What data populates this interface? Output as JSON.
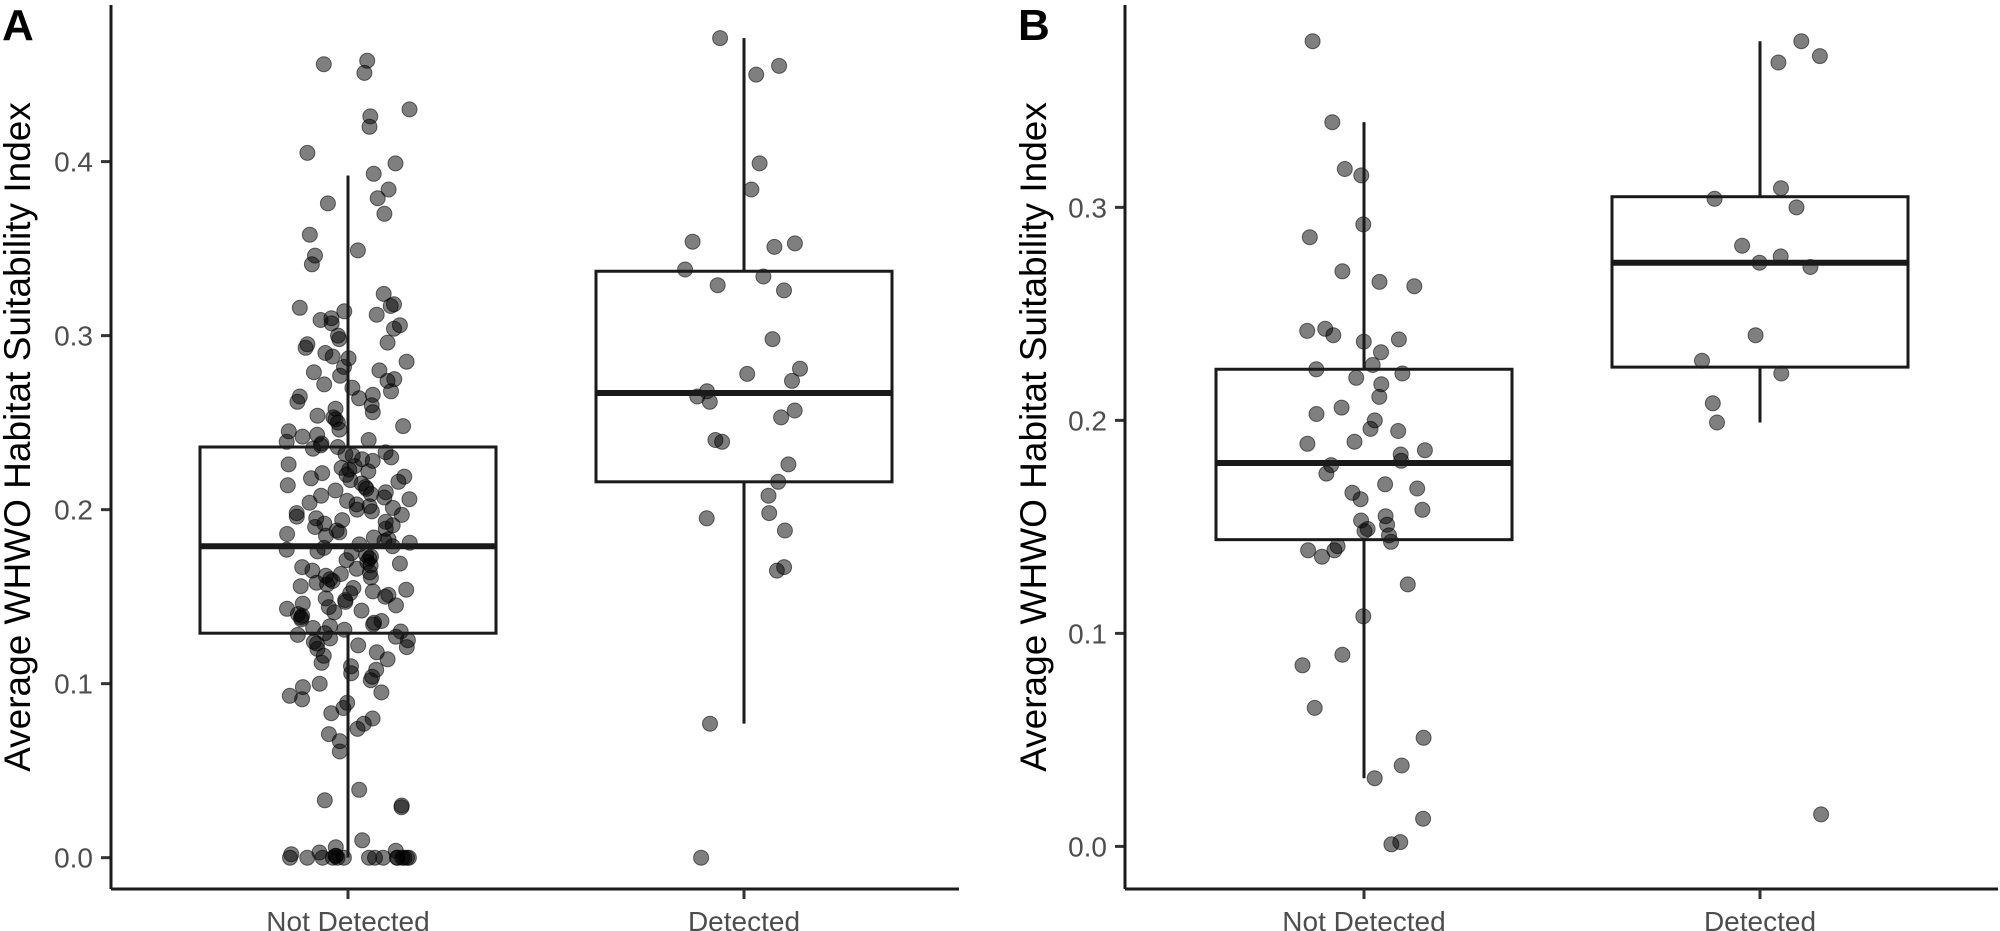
{
  "chart_data": [
    {
      "type": "box",
      "panel_letter": "A",
      "title": "",
      "xlabel": "",
      "ylabel": "Average WHWO Habitat Suitability Index",
      "categories": [
        "Not Detected",
        "Detected"
      ],
      "ylim": [
        -0.018,
        0.49
      ],
      "yticks": [
        0.0,
        0.1,
        0.2,
        0.3,
        0.4
      ],
      "ytick_labels": [
        "0.0",
        "0.1",
        "0.2",
        "0.3",
        "0.4"
      ],
      "grid": false,
      "boxes": [
        {
          "category": "Not Detected",
          "whisker_low": 0.0,
          "q1": 0.129,
          "median": 0.179,
          "q3": 0.236,
          "whisker_high": 0.392
        },
        {
          "category": "Detected",
          "whisker_low": 0.077,
          "q1": 0.216,
          "median": 0.267,
          "q3": 0.337,
          "whisker_high": 0.471
        }
      ],
      "points": [
        {
          "category": "Not Detected",
          "values": [
            0.458,
            0.456,
            0.451,
            0.43,
            0.426,
            0.42,
            0.405,
            0.399,
            0.393,
            0.384,
            0.379,
            0.376,
            0.37,
            0.358,
            0.349,
            0.346,
            0.341,
            0.324,
            0.318,
            0.317,
            0.316,
            0.314,
            0.312,
            0.31,
            0.309,
            0.307,
            0.306,
            0.304,
            0.3,
            0.298,
            0.296,
            0.295,
            0.293,
            0.29,
            0.288,
            0.287,
            0.285,
            0.282,
            0.28,
            0.279,
            0.277,
            0.275,
            0.274,
            0.272,
            0.27,
            0.268,
            0.266,
            0.265,
            0.264,
            0.262,
            0.26,
            0.258,
            0.256,
            0.254,
            0.253,
            0.252,
            0.25,
            0.248,
            0.246,
            0.245,
            0.243,
            0.242,
            0.24,
            0.239,
            0.238,
            0.237,
            0.236,
            0.235,
            0.233,
            0.232,
            0.231,
            0.23,
            0.229,
            0.228,
            0.226,
            0.225,
            0.224,
            0.223,
            0.222,
            0.221,
            0.22,
            0.219,
            0.218,
            0.217,
            0.216,
            0.215,
            0.214,
            0.213,
            0.212,
            0.211,
            0.21,
            0.209,
            0.208,
            0.207,
            0.206,
            0.205,
            0.204,
            0.203,
            0.202,
            0.201,
            0.2,
            0.199,
            0.198,
            0.197,
            0.196,
            0.195,
            0.194,
            0.193,
            0.192,
            0.191,
            0.19,
            0.189,
            0.188,
            0.187,
            0.186,
            0.185,
            0.184,
            0.183,
            0.182,
            0.181,
            0.18,
            0.179,
            0.178,
            0.177,
            0.176,
            0.175,
            0.174,
            0.173,
            0.172,
            0.171,
            0.17,
            0.169,
            0.168,
            0.167,
            0.166,
            0.165,
            0.164,
            0.163,
            0.162,
            0.161,
            0.16,
            0.159,
            0.158,
            0.157,
            0.156,
            0.155,
            0.154,
            0.153,
            0.152,
            0.151,
            0.15,
            0.149,
            0.148,
            0.147,
            0.146,
            0.145,
            0.144,
            0.143,
            0.142,
            0.141,
            0.14,
            0.139,
            0.138,
            0.137,
            0.136,
            0.135,
            0.134,
            0.133,
            0.132,
            0.131,
            0.13,
            0.129,
            0.128,
            0.127,
            0.126,
            0.125,
            0.124,
            0.123,
            0.122,
            0.121,
            0.12,
            0.118,
            0.116,
            0.114,
            0.112,
            0.11,
            0.108,
            0.106,
            0.104,
            0.102,
            0.1,
            0.098,
            0.095,
            0.093,
            0.091,
            0.089,
            0.086,
            0.083,
            0.08,
            0.077,
            0.074,
            0.071,
            0.067,
            0.061,
            0.039,
            0.033,
            0.03,
            0.029,
            0.01,
            0.006,
            0.004,
            0.003,
            0.002,
            0.001,
            0.001,
            0.0,
            0.0,
            0.0,
            0.0,
            0.0,
            0.0,
            0.0,
            0.0,
            0.0,
            0.0,
            0.0,
            0.0,
            0.0,
            0.0,
            0.0
          ]
        },
        {
          "category": "Detected",
          "values": [
            0.471,
            0.455,
            0.45,
            0.399,
            0.384,
            0.354,
            0.353,
            0.351,
            0.338,
            0.334,
            0.329,
            0.326,
            0.298,
            0.281,
            0.278,
            0.274,
            0.268,
            0.265,
            0.262,
            0.257,
            0.253,
            0.24,
            0.239,
            0.226,
            0.216,
            0.208,
            0.198,
            0.195,
            0.188,
            0.167,
            0.165,
            0.077,
            0.0
          ]
        }
      ]
    },
    {
      "type": "box",
      "panel_letter": "B",
      "title": "",
      "xlabel": "",
      "ylabel": "Average WHWO Habitat Suitability Index",
      "categories": [
        "Not Detected",
        "Detected"
      ],
      "ylim": [
        -0.02,
        0.395
      ],
      "yticks": [
        0.0,
        0.1,
        0.2,
        0.3
      ],
      "ytick_labels": [
        "0.0",
        "0.1",
        "0.2",
        "0.3"
      ],
      "grid": false,
      "boxes": [
        {
          "category": "Not Detected",
          "whisker_low": 0.032,
          "q1": 0.144,
          "median": 0.18,
          "q3": 0.224,
          "whisker_high": 0.34
        },
        {
          "category": "Detected",
          "whisker_low": 0.199,
          "q1": 0.225,
          "median": 0.274,
          "q3": 0.305,
          "whisker_high": 0.378
        }
      ],
      "points": [
        {
          "category": "Not Detected",
          "values": [
            0.378,
            0.34,
            0.318,
            0.315,
            0.292,
            0.286,
            0.27,
            0.265,
            0.263,
            0.243,
            0.242,
            0.24,
            0.238,
            0.237,
            0.232,
            0.226,
            0.224,
            0.222,
            0.22,
            0.217,
            0.211,
            0.206,
            0.203,
            0.2,
            0.196,
            0.195,
            0.19,
            0.189,
            0.186,
            0.184,
            0.181,
            0.179,
            0.175,
            0.17,
            0.168,
            0.166,
            0.163,
            0.158,
            0.155,
            0.153,
            0.151,
            0.149,
            0.148,
            0.146,
            0.143,
            0.141,
            0.139,
            0.139,
            0.136,
            0.123,
            0.108,
            0.09,
            0.085,
            0.065,
            0.051,
            0.038,
            0.032,
            0.013,
            0.002,
            0.001
          ]
        },
        {
          "category": "Detected",
          "values": [
            0.378,
            0.371,
            0.368,
            0.309,
            0.304,
            0.3,
            0.282,
            0.277,
            0.274,
            0.272,
            0.24,
            0.228,
            0.222,
            0.208,
            0.199,
            0.015
          ]
        }
      ]
    }
  ]
}
